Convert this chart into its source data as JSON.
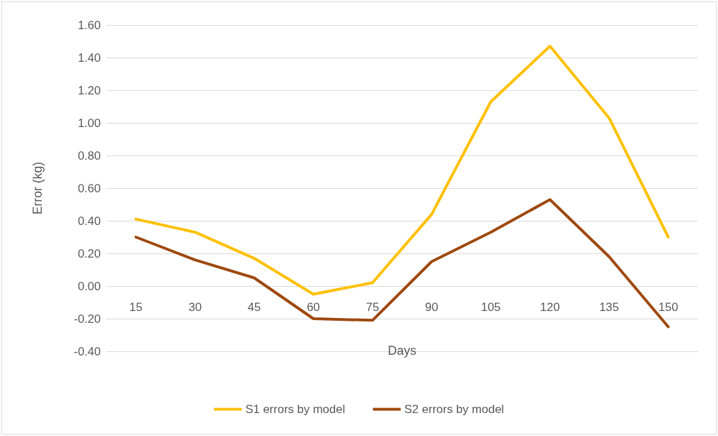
{
  "chart_data": {
    "type": "line",
    "xlabel": "Days",
    "ylabel": "Error (kg)",
    "categories": [
      "15",
      "30",
      "45",
      "60",
      "75",
      "90",
      "105",
      "120",
      "135",
      "150"
    ],
    "series": [
      {
        "name": "S1 errors by model",
        "color": "#ffc000",
        "values": [
          0.41,
          0.33,
          0.17,
          -0.05,
          0.02,
          0.44,
          1.13,
          1.47,
          1.03,
          0.3
        ]
      },
      {
        "name": "S2 errors by model",
        "color": "#9e480e",
        "values": [
          0.3,
          0.16,
          0.05,
          -0.2,
          -0.21,
          0.15,
          0.33,
          0.53,
          0.18,
          -0.25
        ]
      }
    ],
    "ylim": [
      -0.4,
      1.6
    ],
    "yticks": [
      {
        "value": -0.4,
        "label": "-0.40"
      },
      {
        "value": -0.2,
        "label": "-0.20"
      },
      {
        "value": 0,
        "label": "0.00"
      },
      {
        "value": 0.2,
        "label": "0.20"
      },
      {
        "value": 0.4,
        "label": "0.40"
      },
      {
        "value": 0.6,
        "label": "0.60"
      },
      {
        "value": 0.8,
        "label": "0.80"
      },
      {
        "value": 1.0,
        "label": "1.00"
      },
      {
        "value": 1.2,
        "label": "1.20"
      },
      {
        "value": 1.4,
        "label": "1.40"
      },
      {
        "value": 1.6,
        "label": "1.60"
      }
    ],
    "grid": "y",
    "legend": "bottom",
    "marker": "none",
    "line_style": "solid"
  }
}
